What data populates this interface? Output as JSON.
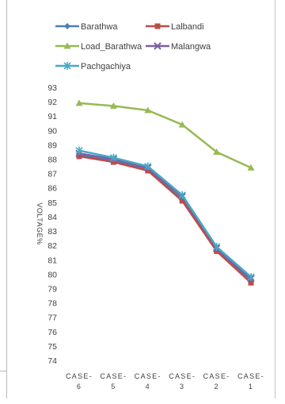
{
  "chart_data": {
    "type": "line",
    "title": "",
    "xlabel": "",
    "ylabel": "VOLTAGE%",
    "ylim": [
      74,
      93
    ],
    "ytick_step": 1,
    "categories": [
      "CASE-6",
      "CASE-5",
      "CASE-4",
      "CASE-3",
      "CASE-2",
      "CASE-1"
    ],
    "category_lines": [
      [
        "CASE-",
        "6"
      ],
      [
        "CASE-",
        "5"
      ],
      [
        "CASE-",
        "4"
      ],
      [
        "CASE-",
        "3"
      ],
      [
        "CASE-",
        "2"
      ],
      [
        "CASE-",
        "1"
      ]
    ],
    "legend_position": "top",
    "grid": false,
    "series": [
      {
        "name": "Barathwa",
        "color": "#4a7ebb",
        "marker": "diamond",
        "values": [
          88.3,
          87.9,
          87.3,
          85.2,
          81.7,
          79.6
        ]
      },
      {
        "name": "Lalbandi",
        "color": "#be4b48",
        "marker": "square",
        "values": [
          88.2,
          87.8,
          87.2,
          85.1,
          81.6,
          79.4
        ]
      },
      {
        "name": "Load_Barathwa",
        "color": "#98b954",
        "marker": "triangle",
        "values": [
          91.9,
          91.7,
          91.4,
          90.4,
          88.5,
          87.4
        ]
      },
      {
        "name": "Malangwa",
        "color": "#7d60a0",
        "marker": "x",
        "values": [
          88.4,
          88.0,
          87.4,
          85.4,
          81.8,
          79.7
        ]
      },
      {
        "name": "Pachgachiya",
        "color": "#46aac5",
        "marker": "asterisk",
        "values": [
          88.6,
          88.1,
          87.5,
          85.5,
          81.9,
          79.8
        ]
      }
    ]
  }
}
